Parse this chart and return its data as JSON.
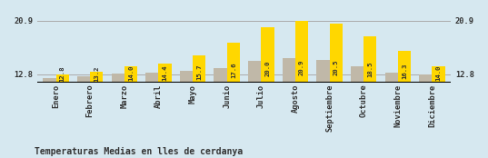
{
  "months": [
    "Enero",
    "Febrero",
    "Marzo",
    "Abril",
    "Mayo",
    "Junio",
    "Julio",
    "Agosto",
    "Septiembre",
    "Octubre",
    "Noviembre",
    "Diciembre"
  ],
  "values": [
    12.8,
    13.2,
    14.0,
    14.4,
    15.7,
    17.6,
    20.0,
    20.9,
    20.5,
    18.5,
    16.3,
    14.0
  ],
  "gray_values": [
    12.2,
    12.5,
    12.9,
    13.0,
    13.3,
    13.8,
    14.8,
    15.2,
    15.0,
    14.0,
    13.0,
    12.8
  ],
  "bar_color_yellow": "#FFD700",
  "bar_color_gray": "#C0B8A8",
  "background_color": "#D6E8F0",
  "grid_color": "#AAAAAA",
  "text_color": "#333333",
  "title": "Temperaturas Medias en lles de cerdanya",
  "yticks": [
    12.8,
    20.9
  ],
  "ymin": 11.5,
  "ymax": 22.0,
  "title_fontsize": 7.0,
  "tick_fontsize": 6.2,
  "value_fontsize": 5.2
}
